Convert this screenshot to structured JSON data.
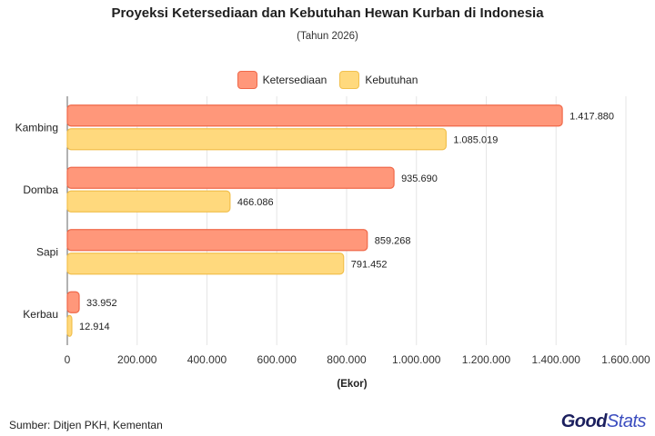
{
  "title": "Proyeksi Ketersediaan dan Kebutuhan Hewan Kurban di Indonesia",
  "subtitle": "(Tahun 2026)",
  "source": "Sumber: Ditjen PKH, Kementan",
  "brand": {
    "part1": "Good",
    "part2": "Stats"
  },
  "colors": {
    "ketersediaan_fill": "#FF977A",
    "ketersediaan_border": "#F0694A",
    "kebutuhan_fill": "#FFD97D",
    "kebutuhan_border": "#F2C04E",
    "grid": "#E6E6E6",
    "axis": "#666666"
  },
  "chart_data": {
    "type": "bar",
    "orientation": "horizontal",
    "title": "Proyeksi Ketersediaan dan Kebutuhan Hewan Kurban di Indonesia",
    "subtitle": "(Tahun 2026)",
    "xlabel": "(Ekor)",
    "ylabel": "",
    "categories": [
      "Kambing",
      "Domba",
      "Sapi",
      "Kerbau"
    ],
    "series": [
      {
        "name": "Ketersediaan",
        "values": [
          1417880,
          935690,
          859268,
          33952
        ],
        "labels": [
          "1.417.880",
          "935.690",
          "859.268",
          "33.952"
        ]
      },
      {
        "name": "Kebutuhan",
        "values": [
          1085019,
          466086,
          791452,
          12914
        ],
        "labels": [
          "1.085.019",
          "466.086",
          "791.452",
          "12.914"
        ]
      }
    ],
    "xlim": [
      0,
      1600000
    ],
    "xticks": [
      0,
      200000,
      400000,
      600000,
      800000,
      1000000,
      1200000,
      1400000,
      1600000
    ],
    "xtick_labels": [
      "0",
      "200.000",
      "400.000",
      "600.000",
      "800.000",
      "1.000.000",
      "1.200.000",
      "1.400.000",
      "1.600.000"
    ],
    "grid": true,
    "legend_position": "top-center"
  }
}
